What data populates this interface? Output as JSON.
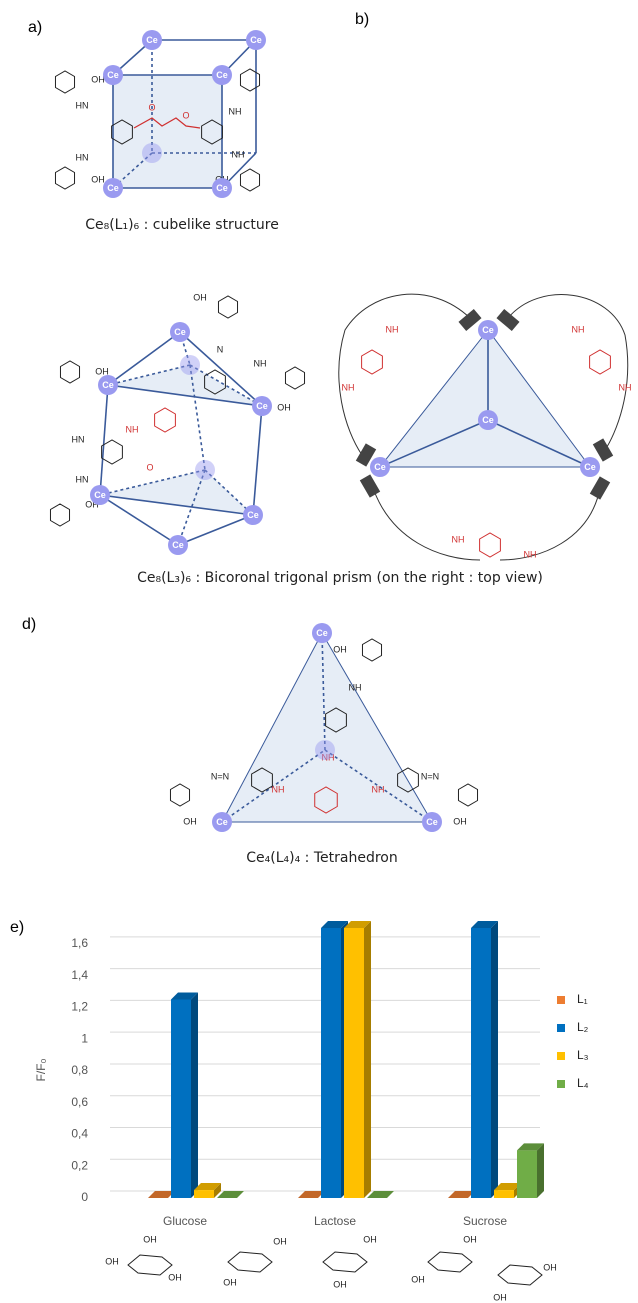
{
  "panels": {
    "a": "a)",
    "b": "b)",
    "d": "d)",
    "e": "e)"
  },
  "captions": {
    "a": "Ce₈(L₁)₆ : cubelike structure",
    "c": "Ce₈(L₃)₆ : Bicoronal trigonal prism (on the right : top view)",
    "d": "Ce₄(L₄)₄ : Tetrahedron"
  },
  "labels": {
    "atom": "Ce",
    "oh": "OH",
    "hn": "HN",
    "nh": "NH",
    "n": "N",
    "o": "O",
    "nn": "N=N"
  },
  "chart_data": {
    "type": "bar3d",
    "ylabel": "F/F₀",
    "categories": [
      "Glucose",
      "Lactose",
      "Sucrose"
    ],
    "series": [
      {
        "name": "L₁",
        "color": "#ed7d31",
        "values": [
          0,
          0,
          0
        ]
      },
      {
        "name": "L₂",
        "color": "#0070c0",
        "values": [
          1.25,
          1.7,
          1.7
        ]
      },
      {
        "name": "L₃",
        "color": "#ffc000",
        "values": [
          0.05,
          1.7,
          0.05
        ]
      },
      {
        "name": "L₄",
        "color": "#70ad47",
        "values": [
          0,
          0,
          0.3
        ]
      }
    ],
    "ylim": [
      0,
      1.7
    ],
    "yticks": [
      0,
      {
        "value": 0.2,
        "label": "0,2"
      },
      {
        "value": 0.4,
        "label": "0,4"
      },
      {
        "value": 0.6,
        "label": "0,6"
      },
      {
        "value": 0.8,
        "label": "0,8"
      },
      1,
      {
        "value": 1.2,
        "label": "1,2"
      },
      {
        "value": 1.4,
        "label": "1,4"
      },
      {
        "value": 1.6,
        "label": "1,6"
      }
    ],
    "grid": true,
    "legend": "right"
  }
}
